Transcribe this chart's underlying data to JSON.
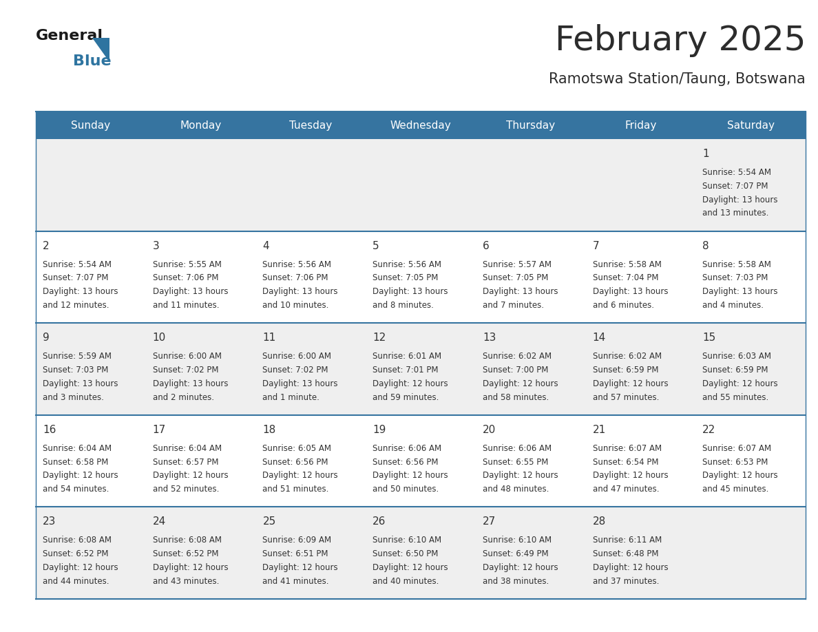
{
  "title": "February 2025",
  "subtitle": "Ramotswa Station/Taung, Botswana",
  "days_of_week": [
    "Sunday",
    "Monday",
    "Tuesday",
    "Wednesday",
    "Thursday",
    "Friday",
    "Saturday"
  ],
  "header_bg": "#3674a0",
  "header_text": "#FFFFFF",
  "cell_bg_odd": "#efefef",
  "cell_bg_even": "#FFFFFF",
  "divider_color": "#3674a0",
  "text_color": "#333333",
  "title_color": "#2c2c2c",
  "logo_general_color": "#1a1a1a",
  "logo_blue_color": "#2E74A0",
  "calendar": [
    [
      {
        "day": null
      },
      {
        "day": null
      },
      {
        "day": null
      },
      {
        "day": null
      },
      {
        "day": null
      },
      {
        "day": null
      },
      {
        "day": 1,
        "sunrise": "5:54 AM",
        "sunset": "7:07 PM",
        "daylight_h": "13 hours",
        "daylight_m": "and 13 minutes."
      }
    ],
    [
      {
        "day": 2,
        "sunrise": "5:54 AM",
        "sunset": "7:07 PM",
        "daylight_h": "13 hours",
        "daylight_m": "and 12 minutes."
      },
      {
        "day": 3,
        "sunrise": "5:55 AM",
        "sunset": "7:06 PM",
        "daylight_h": "13 hours",
        "daylight_m": "and 11 minutes."
      },
      {
        "day": 4,
        "sunrise": "5:56 AM",
        "sunset": "7:06 PM",
        "daylight_h": "13 hours",
        "daylight_m": "and 10 minutes."
      },
      {
        "day": 5,
        "sunrise": "5:56 AM",
        "sunset": "7:05 PM",
        "daylight_h": "13 hours",
        "daylight_m": "and 8 minutes."
      },
      {
        "day": 6,
        "sunrise": "5:57 AM",
        "sunset": "7:05 PM",
        "daylight_h": "13 hours",
        "daylight_m": "and 7 minutes."
      },
      {
        "day": 7,
        "sunrise": "5:58 AM",
        "sunset": "7:04 PM",
        "daylight_h": "13 hours",
        "daylight_m": "and 6 minutes."
      },
      {
        "day": 8,
        "sunrise": "5:58 AM",
        "sunset": "7:03 PM",
        "daylight_h": "13 hours",
        "daylight_m": "and 4 minutes."
      }
    ],
    [
      {
        "day": 9,
        "sunrise": "5:59 AM",
        "sunset": "7:03 PM",
        "daylight_h": "13 hours",
        "daylight_m": "and 3 minutes."
      },
      {
        "day": 10,
        "sunrise": "6:00 AM",
        "sunset": "7:02 PM",
        "daylight_h": "13 hours",
        "daylight_m": "and 2 minutes."
      },
      {
        "day": 11,
        "sunrise": "6:00 AM",
        "sunset": "7:02 PM",
        "daylight_h": "13 hours",
        "daylight_m": "and 1 minute."
      },
      {
        "day": 12,
        "sunrise": "6:01 AM",
        "sunset": "7:01 PM",
        "daylight_h": "12 hours",
        "daylight_m": "and 59 minutes."
      },
      {
        "day": 13,
        "sunrise": "6:02 AM",
        "sunset": "7:00 PM",
        "daylight_h": "12 hours",
        "daylight_m": "and 58 minutes."
      },
      {
        "day": 14,
        "sunrise": "6:02 AM",
        "sunset": "6:59 PM",
        "daylight_h": "12 hours",
        "daylight_m": "and 57 minutes."
      },
      {
        "day": 15,
        "sunrise": "6:03 AM",
        "sunset": "6:59 PM",
        "daylight_h": "12 hours",
        "daylight_m": "and 55 minutes."
      }
    ],
    [
      {
        "day": 16,
        "sunrise": "6:04 AM",
        "sunset": "6:58 PM",
        "daylight_h": "12 hours",
        "daylight_m": "and 54 minutes."
      },
      {
        "day": 17,
        "sunrise": "6:04 AM",
        "sunset": "6:57 PM",
        "daylight_h": "12 hours",
        "daylight_m": "and 52 minutes."
      },
      {
        "day": 18,
        "sunrise": "6:05 AM",
        "sunset": "6:56 PM",
        "daylight_h": "12 hours",
        "daylight_m": "and 51 minutes."
      },
      {
        "day": 19,
        "sunrise": "6:06 AM",
        "sunset": "6:56 PM",
        "daylight_h": "12 hours",
        "daylight_m": "and 50 minutes."
      },
      {
        "day": 20,
        "sunrise": "6:06 AM",
        "sunset": "6:55 PM",
        "daylight_h": "12 hours",
        "daylight_m": "and 48 minutes."
      },
      {
        "day": 21,
        "sunrise": "6:07 AM",
        "sunset": "6:54 PM",
        "daylight_h": "12 hours",
        "daylight_m": "and 47 minutes."
      },
      {
        "day": 22,
        "sunrise": "6:07 AM",
        "sunset": "6:53 PM",
        "daylight_h": "12 hours",
        "daylight_m": "and 45 minutes."
      }
    ],
    [
      {
        "day": 23,
        "sunrise": "6:08 AM",
        "sunset": "6:52 PM",
        "daylight_h": "12 hours",
        "daylight_m": "and 44 minutes."
      },
      {
        "day": 24,
        "sunrise": "6:08 AM",
        "sunset": "6:52 PM",
        "daylight_h": "12 hours",
        "daylight_m": "and 43 minutes."
      },
      {
        "day": 25,
        "sunrise": "6:09 AM",
        "sunset": "6:51 PM",
        "daylight_h": "12 hours",
        "daylight_m": "and 41 minutes."
      },
      {
        "day": 26,
        "sunrise": "6:10 AM",
        "sunset": "6:50 PM",
        "daylight_h": "12 hours",
        "daylight_m": "and 40 minutes."
      },
      {
        "day": 27,
        "sunrise": "6:10 AM",
        "sunset": "6:49 PM",
        "daylight_h": "12 hours",
        "daylight_m": "and 38 minutes."
      },
      {
        "day": 28,
        "sunrise": "6:11 AM",
        "sunset": "6:48 PM",
        "daylight_h": "12 hours",
        "daylight_m": "and 37 minutes."
      },
      {
        "day": null
      }
    ]
  ]
}
